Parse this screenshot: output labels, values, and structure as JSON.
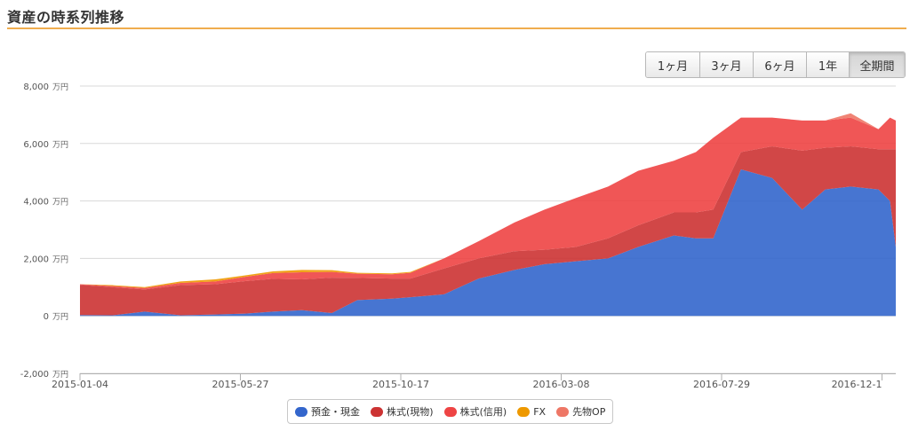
{
  "header": {
    "title": "資産の時系列推移"
  },
  "range_buttons": [
    {
      "label": "1ヶ月",
      "active": false
    },
    {
      "label": "3ヶ月",
      "active": false
    },
    {
      "label": "6ヶ月",
      "active": false
    },
    {
      "label": "1年",
      "active": false
    },
    {
      "label": "全期間",
      "active": true
    }
  ],
  "colors": {
    "cash": "#3366cc",
    "stock_spot": "#cc3333",
    "stock_margin": "#ee4444",
    "fx": "#ee9900",
    "futures_op": "#ee7766",
    "grid": "#d8d8d8",
    "title_rule": "#f0ad4e"
  },
  "chart_data": {
    "type": "area",
    "stacked": true,
    "title": "",
    "xlabel": "",
    "ylabel": "",
    "y_unit": "万円",
    "ylim": [
      -2000,
      8000
    ],
    "yticks": [
      -2000,
      0,
      2000,
      4000,
      6000,
      8000
    ],
    "ytick_labels": [
      "-2,000",
      "0",
      "2,000",
      "4,000",
      "6,000",
      "8,000"
    ],
    "x_range": [
      "2015-01-04",
      "2016-12-10"
    ],
    "xtick_labels": [
      "2015-01-04",
      "2015-05-27",
      "2015-10-17",
      "2016-03-08",
      "2016-07-29",
      "2016-12-1"
    ],
    "grid": true,
    "legend_position": "bottom-center",
    "x": [
      "2015-01-04",
      "2015-02-01",
      "2015-03-01",
      "2015-04-01",
      "2015-05-01",
      "2015-05-27",
      "2015-06-20",
      "2015-07-15",
      "2015-08-10",
      "2015-09-01",
      "2015-10-01",
      "2015-10-17",
      "2015-11-15",
      "2015-12-15",
      "2016-01-15",
      "2016-02-10",
      "2016-03-08",
      "2016-04-05",
      "2016-05-01",
      "2016-06-01",
      "2016-06-20",
      "2016-07-05",
      "2016-07-29",
      "2016-08-25",
      "2016-09-20",
      "2016-10-10",
      "2016-11-01",
      "2016-11-25",
      "2016-12-05",
      "2016-12-10"
    ],
    "series": [
      {
        "name": "預金・現金",
        "color_key": "cash",
        "values": [
          30,
          20,
          150,
          20,
          50,
          80,
          150,
          200,
          100,
          550,
          600,
          650,
          750,
          1300,
          1600,
          1800,
          1900,
          2000,
          2400,
          2800,
          2700,
          2700,
          5100,
          4800,
          3700,
          4400,
          4500,
          4400,
          4000,
          2400
        ]
      },
      {
        "name": "株式(現物)",
        "color_key": "stock_spot",
        "values": [
          1050,
          980,
          770,
          1050,
          1050,
          1130,
          1140,
          1070,
          1230,
          770,
          700,
          650,
          900,
          700,
          650,
          500,
          500,
          700,
          750,
          800,
          900,
          1000,
          600,
          1100,
          2050,
          1450,
          1400,
          1400,
          1800,
          3400
        ]
      },
      {
        "name": "株式(信用)",
        "color_key": "stock_margin",
        "values": [
          20,
          40,
          50,
          80,
          100,
          150,
          200,
          250,
          200,
          150,
          150,
          200,
          350,
          600,
          1000,
          1400,
          1700,
          1800,
          1900,
          1800,
          2100,
          2500,
          1200,
          1000,
          1050,
          950,
          1000,
          700,
          1100,
          1000
        ]
      },
      {
        "name": "FX",
        "color_key": "fx",
        "values": [
          0,
          30,
          30,
          50,
          70,
          50,
          60,
          80,
          60,
          30,
          30,
          30,
          0,
          0,
          0,
          0,
          0,
          0,
          0,
          0,
          0,
          0,
          0,
          0,
          0,
          0,
          0,
          0,
          0,
          0
        ]
      },
      {
        "name": "先物OP",
        "color_key": "futures_op",
        "values": [
          0,
          0,
          0,
          0,
          0,
          0,
          0,
          0,
          0,
          0,
          0,
          0,
          0,
          0,
          0,
          0,
          0,
          0,
          0,
          0,
          0,
          0,
          0,
          0,
          0,
          0,
          150,
          0,
          0,
          0
        ]
      }
    ]
  }
}
